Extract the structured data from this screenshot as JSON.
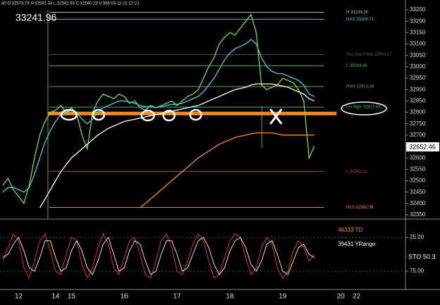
{
  "chart_data": [
    {
      "type": "line",
      "header": "40 O:32573.79 H:32591.34 L:32562.93 C:32580.29 V:366 03-11-21 17:21",
      "header_price": "33241.96",
      "last_price": "32652.46",
      "categories": [
        null,
        null,
        null,
        "12",
        null,
        null,
        null,
        null,
        null,
        null,
        "14",
        null,
        null,
        "15",
        null,
        null,
        null,
        null,
        null,
        null,
        null,
        null,
        null,
        "16",
        null,
        null,
        null,
        null,
        null,
        null,
        null,
        null,
        null,
        "17",
        null,
        null,
        null,
        null,
        null,
        null,
        null,
        null,
        null,
        "18",
        null,
        null,
        null,
        null,
        null,
        null,
        null,
        null,
        null,
        "19",
        null,
        null,
        null,
        null,
        null,
        null,
        null,
        null,
        null,
        null,
        "20",
        null,
        null,
        "22"
      ],
      "series": [
        {
          "color": "#7ddc3c",
          "values": [
            32480,
            32510,
            32460,
            32430,
            32400,
            32480,
            32600,
            32700,
            32760,
            32800,
            32810,
            32830,
            32800,
            32820,
            32790,
            32700,
            32640,
            32800,
            32850,
            32880,
            32870,
            32860,
            32880,
            32870,
            32840,
            32850,
            32820,
            32810,
            32830,
            32820,
            32830,
            32840,
            32850,
            32830,
            32850,
            32870,
            32880,
            32900,
            32950,
            33000,
            33040,
            33100,
            33130,
            33150,
            33140,
            33170,
            33200,
            33230,
            33150,
            32920,
            32900,
            32910,
            32920,
            32950,
            32940,
            32930,
            32900,
            32850,
            32600,
            32652,
            null,
            null,
            null,
            null,
            null,
            null,
            null,
            null
          ]
        },
        {
          "color": "#3fd0e0",
          "values": [
            32450,
            32470,
            32470,
            32460,
            32450,
            32470,
            32530,
            32600,
            32670,
            32720,
            32760,
            32790,
            32800,
            32810,
            32800,
            32770,
            32750,
            32770,
            32800,
            32820,
            32830,
            32840,
            32850,
            32850,
            32845,
            32840,
            32830,
            32825,
            32825,
            32820,
            32825,
            32830,
            32835,
            32835,
            32840,
            32850,
            32860,
            32870,
            32890,
            32920,
            32950,
            32990,
            33030,
            33060,
            33080,
            33090,
            33100,
            33120,
            33100,
            33040,
            33000,
            32980,
            32970,
            32970,
            32960,
            32950,
            32940,
            32920,
            32880,
            32870,
            null,
            null,
            null,
            null,
            null,
            null,
            null,
            null
          ]
        },
        {
          "color": "#ffffff",
          "values": [
            null,
            null,
            null,
            null,
            null,
            null,
            null,
            32380,
            32420,
            32460,
            32500,
            32540,
            32570,
            32600,
            32620,
            32640,
            32660,
            32680,
            32700,
            32715,
            32730,
            32740,
            32750,
            32760,
            32765,
            32770,
            32775,
            32780,
            32785,
            32790,
            32795,
            32800,
            32805,
            32810,
            32815,
            32820,
            32825,
            32830,
            32840,
            32850,
            32860,
            32870,
            32880,
            32890,
            32900,
            32905,
            32910,
            32920,
            32925,
            32925,
            32925,
            32925,
            32920,
            32915,
            32910,
            32900,
            32890,
            32880,
            32860,
            32850,
            null,
            null,
            null,
            null,
            null,
            null,
            null,
            null
          ]
        },
        {
          "color": "#ff8c1a",
          "values": [
            null,
            null,
            null,
            null,
            null,
            null,
            null,
            null,
            null,
            null,
            null,
            null,
            null,
            null,
            null,
            null,
            null,
            null,
            null,
            null,
            null,
            null,
            null,
            null,
            null,
            null,
            32380,
            32400,
            32420,
            32440,
            32460,
            32480,
            32500,
            32520,
            32540,
            32560,
            32580,
            32600,
            32615,
            32630,
            32645,
            32660,
            32670,
            32680,
            32690,
            32695,
            32700,
            32705,
            32710,
            32710,
            32710,
            32710,
            32705,
            32700,
            32700,
            32700,
            32700,
            32700,
            32700,
            32700,
            null,
            null,
            null,
            null,
            null,
            null,
            null,
            null
          ]
        }
      ],
      "hlines": [
        {
          "value": 33239.3,
          "label": "H 33239.30",
          "color": "#bbbbbb"
        },
        {
          "value": 33208.71,
          "label": "HAS 33208.71",
          "color": "#3fd0e0"
        },
        {
          "value": 33054.17,
          "label": "Test Mid Point 33054.17",
          "color": "#555555"
        },
        {
          "value": 33004.48,
          "label": "L 33004.48",
          "color": "#4caf50"
        },
        {
          "value": 32913.38,
          "label": "RVR 32913.38",
          "color": "#4caf50"
        },
        {
          "value": 32822.84,
          "label": "LH High 32822.84",
          "color": "#4caf50"
        },
        {
          "value": 32541.11,
          "label": "L 32541.11",
          "color": "#d04040"
        },
        {
          "value": 32382.36,
          "label": "HLS 32382.36",
          "color": "#ff8c1a"
        }
      ],
      "pivot_line": {
        "value": 32795,
        "color": "#ff8c1a"
      },
      "ylim": [
        32350,
        33250
      ],
      "yticks": [
        32350,
        32400,
        32450,
        32500,
        32550,
        32600,
        32650,
        32700,
        32750,
        32800,
        32850,
        32900,
        32950,
        33000,
        33050,
        33100,
        33150,
        33200,
        33250
      ]
    },
    {
      "type": "line",
      "annotations": [
        "46333 TD",
        "39431 YRange",
        "STO 50.3"
      ],
      "series": [
        {
          "color": "#e03030",
          "values": [
            60,
            40,
            20,
            30,
            70,
            85,
            60,
            30,
            20,
            45,
            75,
            80,
            50,
            25,
            30,
            65,
            85,
            70,
            40,
            20,
            35,
            70,
            80,
            55,
            30,
            25,
            50,
            80,
            85,
            60,
            30,
            20,
            40,
            75,
            80,
            60,
            35,
            20,
            30,
            60,
            85,
            80,
            55,
            30,
            20,
            25,
            55,
            80,
            70,
            40,
            25,
            35,
            70,
            85,
            75,
            45,
            30,
            40,
            60,
            50,
            null,
            null,
            null,
            null,
            null,
            null,
            null,
            null
          ]
        },
        {
          "color": "#dddddd",
          "values": [
            55,
            50,
            35,
            25,
            45,
            70,
            75,
            55,
            30,
            30,
            55,
            75,
            70,
            45,
            30,
            45,
            70,
            80,
            60,
            35,
            25,
            50,
            75,
            70,
            45,
            30,
            35,
            60,
            80,
            75,
            50,
            30,
            30,
            50,
            75,
            70,
            50,
            30,
            25,
            40,
            65,
            80,
            70,
            45,
            30,
            25,
            40,
            65,
            75,
            60,
            35,
            30,
            50,
            75,
            80,
            60,
            40,
            35,
            50,
            55,
            null,
            null,
            null,
            null,
            null,
            null,
            null,
            null
          ]
        }
      ],
      "ylim": [
        0,
        100
      ],
      "inverted_y": true,
      "yticks": [
        {
          "value": 25,
          "label": "25.00"
        },
        {
          "value": 75,
          "label": "75.00"
        }
      ]
    }
  ]
}
